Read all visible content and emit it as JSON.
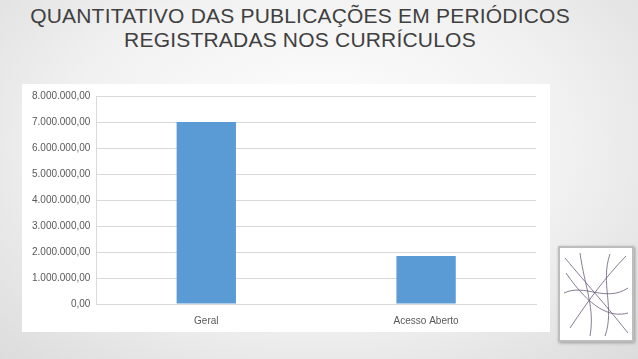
{
  "chart_data": {
    "type": "bar",
    "title": "QUANTITATIVO DAS PUBLICAÇÕES EM PERIÓDICOS REGISTRADAS NOS CURRÍCULOS",
    "categories": [
      "Geral",
      "Acesso Aberto"
    ],
    "values": [
      7000000,
      1850000
    ],
    "color": "#5b9bd5",
    "ylim": [
      0,
      8000000
    ],
    "yticks": [
      {
        "value": 0,
        "label": "0,00"
      },
      {
        "value": 1000000,
        "label": "1.000.000,00"
      },
      {
        "value": 2000000,
        "label": "2.000.000,00"
      },
      {
        "value": 3000000,
        "label": "3.000.000,00"
      },
      {
        "value": 4000000,
        "label": "4.000.000,00"
      },
      {
        "value": 5000000,
        "label": "5.000.000,00"
      },
      {
        "value": 6000000,
        "label": "6.000.000,00"
      },
      {
        "value": 7000000,
        "label": "7.000.000,00"
      },
      {
        "value": 8000000,
        "label": "8.000.000,00"
      }
    ],
    "grid": true
  }
}
